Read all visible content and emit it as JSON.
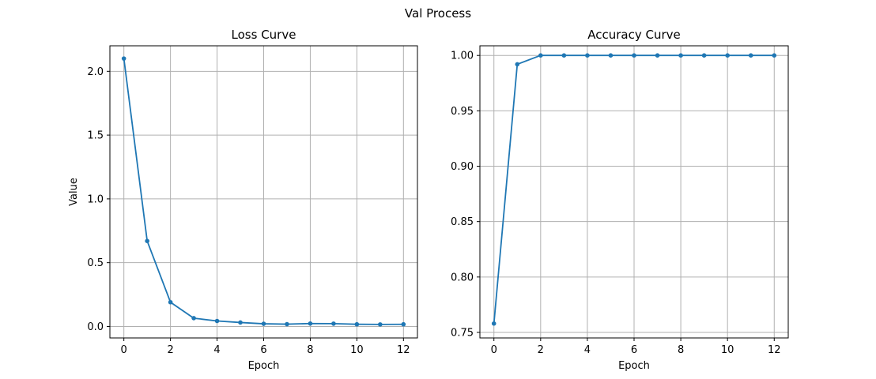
{
  "figure": {
    "suptitle": "Val Process"
  },
  "chart_data": [
    {
      "type": "line",
      "title": "Loss Curve",
      "xlabel": "Epoch",
      "ylabel": "Value",
      "xlim": [
        -0.6,
        12.6
      ],
      "ylim": [
        -0.09,
        2.2
      ],
      "xticks": [
        0,
        2,
        4,
        6,
        8,
        10,
        12
      ],
      "xtick_labels": [
        "0",
        "2",
        "4",
        "6",
        "8",
        "10",
        "12"
      ],
      "yticks": [
        0.0,
        0.5,
        1.0,
        1.5,
        2.0
      ],
      "ytick_labels": [
        "0.0",
        "0.5",
        "1.0",
        "1.5",
        "2.0"
      ],
      "grid": true,
      "color": "#1f77b4",
      "series": [
        {
          "x": [
            0,
            1,
            2,
            3,
            4,
            5,
            6,
            7,
            8,
            9,
            10,
            11,
            12
          ],
          "values": [
            2.1,
            0.67,
            0.19,
            0.065,
            0.043,
            0.031,
            0.021,
            0.018,
            0.023,
            0.022,
            0.017,
            0.016,
            0.017
          ]
        }
      ]
    },
    {
      "type": "line",
      "title": "Accuracy Curve",
      "xlabel": "Epoch",
      "ylabel": "",
      "xlim": [
        -0.6,
        12.6
      ],
      "ylim": [
        0.745,
        1.0087
      ],
      "xticks": [
        0,
        2,
        4,
        6,
        8,
        10,
        12
      ],
      "xtick_labels": [
        "0",
        "2",
        "4",
        "6",
        "8",
        "10",
        "12"
      ],
      "yticks": [
        0.75,
        0.8,
        0.85,
        0.9,
        0.95,
        1.0
      ],
      "ytick_labels": [
        "0.75",
        "0.80",
        "0.85",
        "0.90",
        "0.95",
        "1.00"
      ],
      "grid": true,
      "color": "#1f77b4",
      "series": [
        {
          "x": [
            0,
            1,
            2,
            3,
            4,
            5,
            6,
            7,
            8,
            9,
            10,
            11,
            12
          ],
          "values": [
            0.758,
            0.992,
            1.0,
            1.0,
            1.0,
            1.0,
            1.0,
            1.0,
            1.0,
            1.0,
            1.0,
            1.0,
            1.0
          ]
        }
      ]
    }
  ]
}
